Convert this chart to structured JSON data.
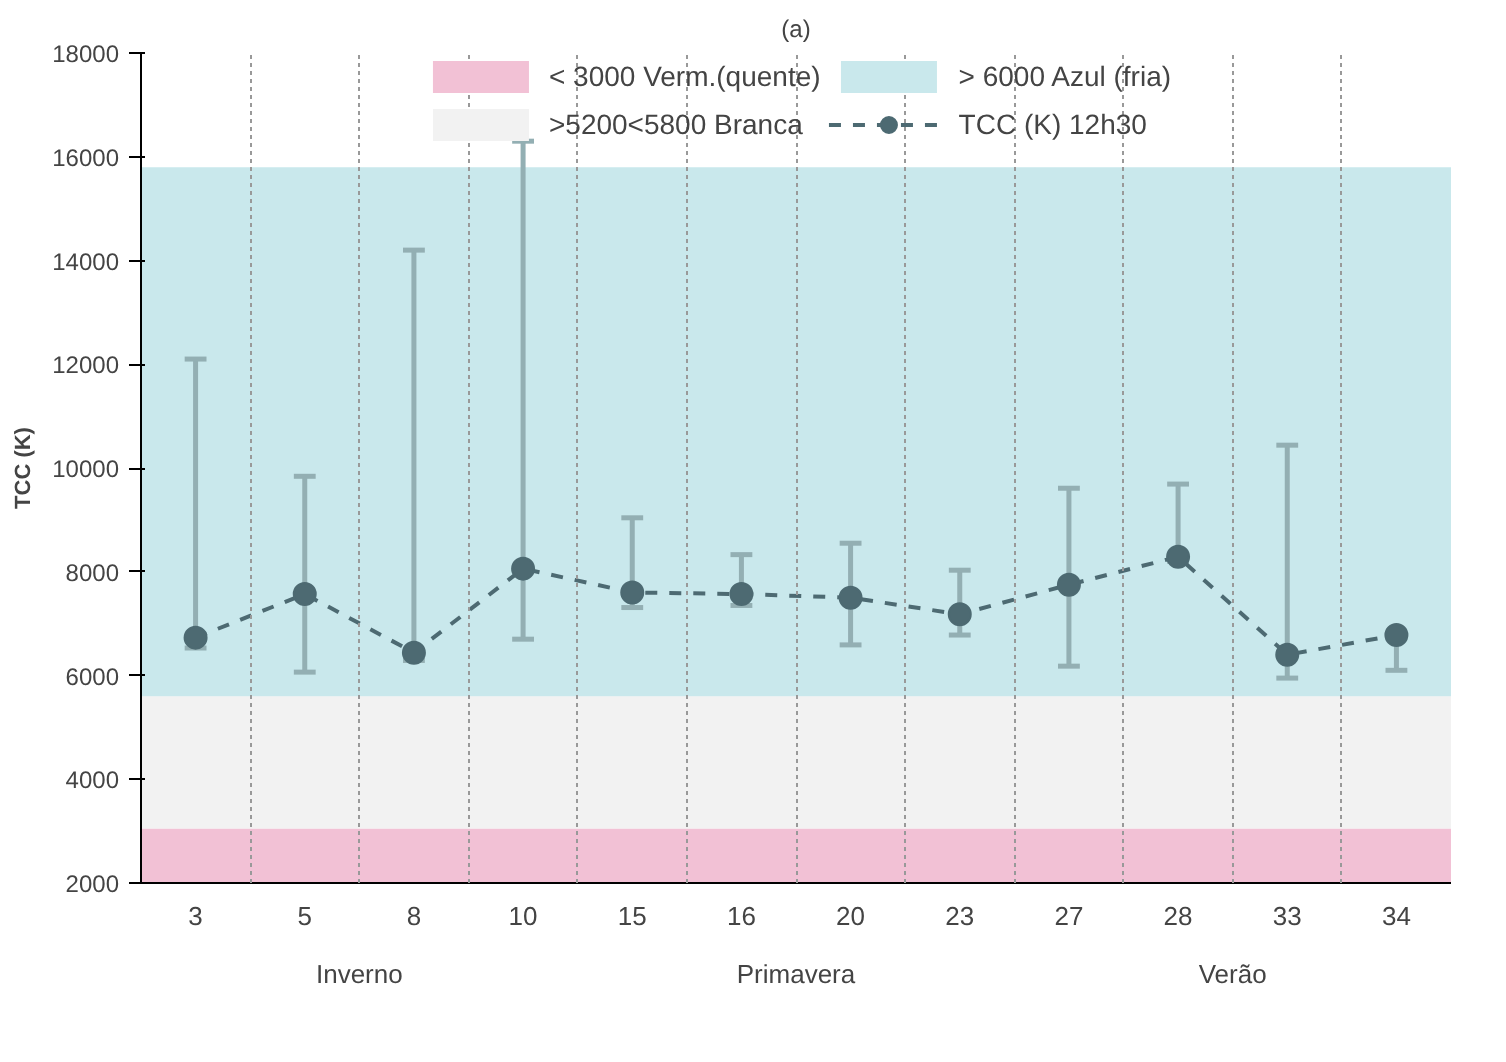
{
  "chart_data": {
    "type": "line",
    "title": "(a)",
    "ylabel": "TCC (K)",
    "categories": [
      "3",
      "5",
      "8",
      "10",
      "15",
      "16",
      "20",
      "23",
      "27",
      "28",
      "33",
      "34"
    ],
    "annotations": [
      "Inverno",
      "Primavera",
      "Verão"
    ],
    "series": [
      {
        "name": "TCC (K) 12h30",
        "color": "#4d6a72",
        "values": [
          6730,
          7570,
          6440,
          8060,
          7600,
          7570,
          7500,
          7180,
          7750,
          8290,
          6400,
          6780
        ],
        "errors": [
          [
            6530,
            12100
          ],
          [
            6065,
            9840
          ],
          [
            6290,
            14200
          ],
          [
            6700,
            16300
          ],
          [
            7310,
            9040
          ],
          [
            7350,
            8330
          ],
          [
            6590,
            8550
          ],
          [
            6780,
            8030
          ],
          [
            6180,
            9610
          ],
          [
            8200,
            9690
          ],
          [
            5950,
            10440
          ],
          [
            6100,
            6800
          ]
        ]
      }
    ],
    "bands": [
      {
        "axis": "y",
        "from": 2000,
        "to": 3050,
        "label": "< 3000 Verm.(quente)",
        "color": "#f2c1d5"
      },
      {
        "axis": "y",
        "from": 3050,
        "to": 5600,
        "label": ">5200<5800 Branca",
        "color": "#f2f2f2"
      },
      {
        "axis": "y",
        "from": 5600,
        "to": 15800,
        "label": "> 6000 Azul (fria)",
        "color": "#c9e8ec"
      }
    ],
    "ylim": [
      2000,
      18000
    ],
    "yticks": [
      2000,
      4000,
      6000,
      8000,
      10000,
      12000,
      14000,
      16000,
      18000
    ],
    "legend": "top",
    "marker": "circle",
    "line_style": "dashed"
  }
}
